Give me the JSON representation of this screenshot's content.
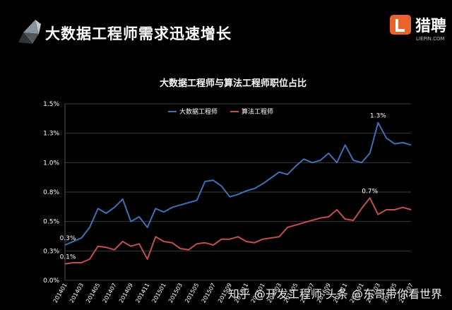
{
  "slide": {
    "title": "大数据工程师需求迅速增长",
    "logo_text": "猎聘",
    "logo_subtext": "LIEPIN.COM",
    "logo_icon": "liepin-L-icon",
    "watermark": "知乎 @开发工程师 头条 @东哥带你看世界",
    "accent_color": "#e8642a"
  },
  "chart_data": {
    "type": "line",
    "title": "大数据工程师与算法工程师职位占比",
    "xlabel": "",
    "ylabel": "",
    "ylim": [
      0,
      1.5
    ],
    "grid": true,
    "legend_placement": "top-left",
    "y_tick_values": [
      0,
      0.25,
      0.5,
      0.75,
      1.0,
      1.25,
      1.5
    ],
    "y_tick_labels": [
      "0.0%",
      "0.3%",
      "0.5%",
      "0.8%",
      "1.0%",
      "1.3%",
      "1.5%"
    ],
    "x_tick_labels": [
      "201401",
      "201403",
      "201405",
      "201407",
      "201409",
      "201411",
      "201501",
      "201503",
      "201505",
      "201507",
      "201509",
      "201511",
      "201601",
      "201603",
      "201605",
      "201607",
      "201609",
      "201611",
      "201701",
      "201703",
      "201705",
      "201707"
    ],
    "series": [
      {
        "name": "大数据工程师",
        "color": "#3f6fb5",
        "x": [
          0,
          1,
          2,
          3,
          4,
          5,
          6,
          7,
          8,
          9,
          10,
          11,
          12,
          13,
          14,
          15,
          16,
          17,
          18,
          19,
          20,
          21,
          22,
          23,
          24,
          25,
          26,
          27,
          28,
          29,
          30,
          31,
          32,
          33,
          34,
          35,
          36,
          37,
          38,
          39,
          40,
          41,
          42
        ],
        "values": [
          0.3,
          0.33,
          0.36,
          0.45,
          0.61,
          0.57,
          0.62,
          0.69,
          0.5,
          0.54,
          0.45,
          0.61,
          0.58,
          0.62,
          0.64,
          0.66,
          0.68,
          0.84,
          0.85,
          0.8,
          0.71,
          0.73,
          0.76,
          0.78,
          0.82,
          0.87,
          0.92,
          0.9,
          0.97,
          1.03,
          1.0,
          1.02,
          1.08,
          1.0,
          1.15,
          1.02,
          1.0,
          1.08,
          1.34,
          1.21,
          1.16,
          1.17,
          1.15
        ],
        "annotations": [
          {
            "x": 0,
            "y": 0.3,
            "text": "0.3%"
          },
          {
            "x": 38,
            "y": 1.34,
            "text": "1.3%"
          }
        ]
      },
      {
        "name": "算法工程师",
        "color": "#c0504d",
        "x": [
          0,
          1,
          2,
          3,
          4,
          5,
          6,
          7,
          8,
          9,
          10,
          11,
          12,
          13,
          14,
          15,
          16,
          17,
          18,
          19,
          20,
          21,
          22,
          23,
          24,
          25,
          26,
          27,
          28,
          29,
          30,
          31,
          32,
          33,
          34,
          35,
          36,
          37,
          38,
          39,
          40,
          41,
          42
        ],
        "values": [
          0.14,
          0.15,
          0.15,
          0.18,
          0.29,
          0.28,
          0.26,
          0.33,
          0.29,
          0.31,
          0.18,
          0.37,
          0.33,
          0.32,
          0.27,
          0.26,
          0.31,
          0.32,
          0.3,
          0.35,
          0.35,
          0.37,
          0.33,
          0.32,
          0.35,
          0.36,
          0.37,
          0.45,
          0.47,
          0.49,
          0.51,
          0.53,
          0.54,
          0.6,
          0.52,
          0.51,
          0.61,
          0.7,
          0.56,
          0.6,
          0.6,
          0.62,
          0.6
        ],
        "annotations": [
          {
            "x": 0,
            "y": 0.14,
            "text": "0.1%"
          },
          {
            "x": 37,
            "y": 0.7,
            "text": "0.7%"
          }
        ]
      }
    ]
  }
}
